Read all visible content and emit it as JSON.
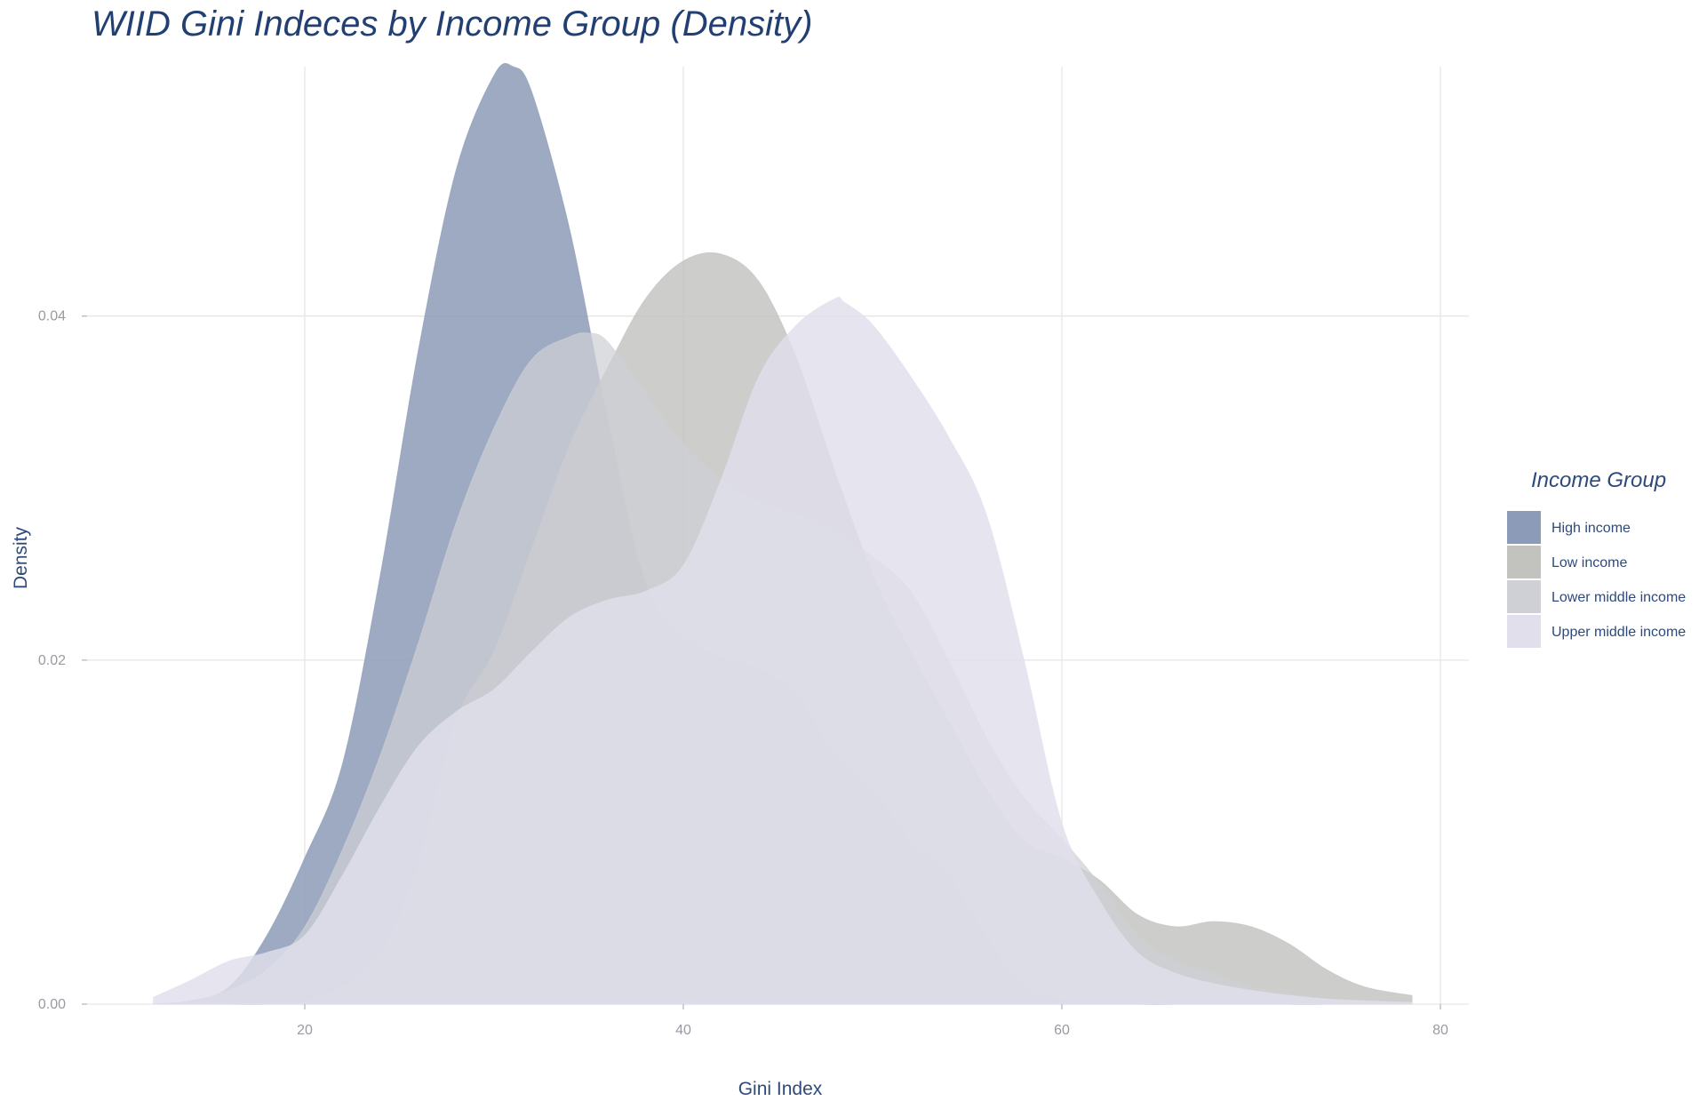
{
  "chart_data": {
    "type": "area",
    "title": "WIID Gini Indeces by Income Group (Density)",
    "xlabel": "Gini Index",
    "ylabel": "Density",
    "xlim": [
      8.5,
      81.5
    ],
    "ylim": [
      0,
      0.0545
    ],
    "x_ticks": [
      20,
      40,
      60,
      80
    ],
    "y_ticks": [
      0.0,
      0.02,
      0.04
    ],
    "x_tick_labels": [
      "20",
      "40",
      "60",
      "80"
    ],
    "y_tick_labels": [
      "0.00",
      "0.02",
      "0.04"
    ],
    "grid": true,
    "legend": {
      "title": "Income Group",
      "position": "right"
    },
    "series": [
      {
        "name": "High income",
        "color": "#8c9bb7",
        "opacity": 0.85,
        "x": [
          12,
          14,
          16,
          18,
          20,
          22,
          24,
          26,
          28,
          30,
          31,
          32,
          34,
          36,
          38,
          40,
          42,
          44,
          46,
          48,
          50,
          52,
          54,
          56,
          58,
          60,
          62,
          64,
          66,
          68,
          70,
          72,
          74,
          76,
          78
        ],
        "y": [
          0.0,
          0.0002,
          0.001,
          0.004,
          0.0085,
          0.014,
          0.025,
          0.038,
          0.0485,
          0.054,
          0.0545,
          0.053,
          0.045,
          0.034,
          0.0245,
          0.0215,
          0.0202,
          0.0195,
          0.018,
          0.0145,
          0.0125,
          0.0095,
          0.0075,
          0.004,
          0.001,
          0.0003,
          0.0001,
          0.0,
          0.0,
          0.0001,
          0.0001,
          0.0,
          0.0,
          0.0,
          0.0
        ]
      },
      {
        "name": "Low income",
        "color": "#c2c2bf",
        "opacity": 0.82,
        "x": [
          12,
          14,
          16,
          18,
          20,
          22,
          24,
          26,
          28,
          30,
          32,
          34,
          36,
          38,
          40,
          42,
          44,
          46,
          48,
          50,
          52,
          54,
          56,
          58,
          60,
          62,
          64,
          66,
          68,
          70,
          72,
          74,
          76,
          78.5
        ],
        "y": [
          0.0,
          0.0,
          0.0,
          0.0,
          0.0002,
          0.001,
          0.003,
          0.008,
          0.0165,
          0.0205,
          0.0265,
          0.0325,
          0.037,
          0.041,
          0.0432,
          0.0436,
          0.042,
          0.0375,
          0.031,
          0.025,
          0.0205,
          0.0165,
          0.0125,
          0.0095,
          0.0085,
          0.0072,
          0.0052,
          0.0045,
          0.0048,
          0.0045,
          0.0035,
          0.002,
          0.001,
          0.0005
        ]
      },
      {
        "name": "Lower middle income",
        "color": "#cfd0d6",
        "opacity": 0.72,
        "x": [
          12,
          14,
          16,
          18,
          20,
          22,
          24,
          26,
          28,
          30,
          32,
          34,
          35,
          36,
          38,
          40,
          42,
          44,
          46,
          48,
          50,
          52,
          54,
          56,
          58,
          60,
          62,
          64,
          66,
          68,
          70,
          72,
          74,
          76,
          78.5
        ],
        "y": [
          0.0,
          0.0002,
          0.0008,
          0.002,
          0.0045,
          0.009,
          0.0145,
          0.021,
          0.028,
          0.0335,
          0.0375,
          0.0388,
          0.039,
          0.0385,
          0.0355,
          0.0325,
          0.0305,
          0.0292,
          0.0285,
          0.0275,
          0.026,
          0.024,
          0.02,
          0.0155,
          0.012,
          0.0096,
          0.007,
          0.004,
          0.0025,
          0.0018,
          0.001,
          0.0006,
          0.0003,
          0.0001,
          0.0
        ]
      },
      {
        "name": "Upper middle income",
        "color": "#e1dfec",
        "opacity": 0.82,
        "x": [
          12,
          14,
          16,
          18,
          20,
          22,
          24,
          26,
          28,
          30,
          32,
          34,
          36,
          38,
          40,
          42,
          44,
          46,
          48,
          48.5,
          50,
          52,
          54,
          56,
          58,
          60,
          62,
          64,
          66,
          68,
          70,
          72,
          74,
          76,
          78.5
        ],
        "y": [
          0.0004,
          0.0014,
          0.0025,
          0.003,
          0.004,
          0.0075,
          0.0115,
          0.015,
          0.017,
          0.0183,
          0.0205,
          0.0225,
          0.0235,
          0.024,
          0.0255,
          0.0305,
          0.0365,
          0.0395,
          0.041,
          0.0408,
          0.0395,
          0.0365,
          0.033,
          0.0285,
          0.02,
          0.0105,
          0.006,
          0.003,
          0.0018,
          0.0012,
          0.0008,
          0.0005,
          0.0003,
          0.0002,
          0.0001
        ]
      }
    ]
  }
}
